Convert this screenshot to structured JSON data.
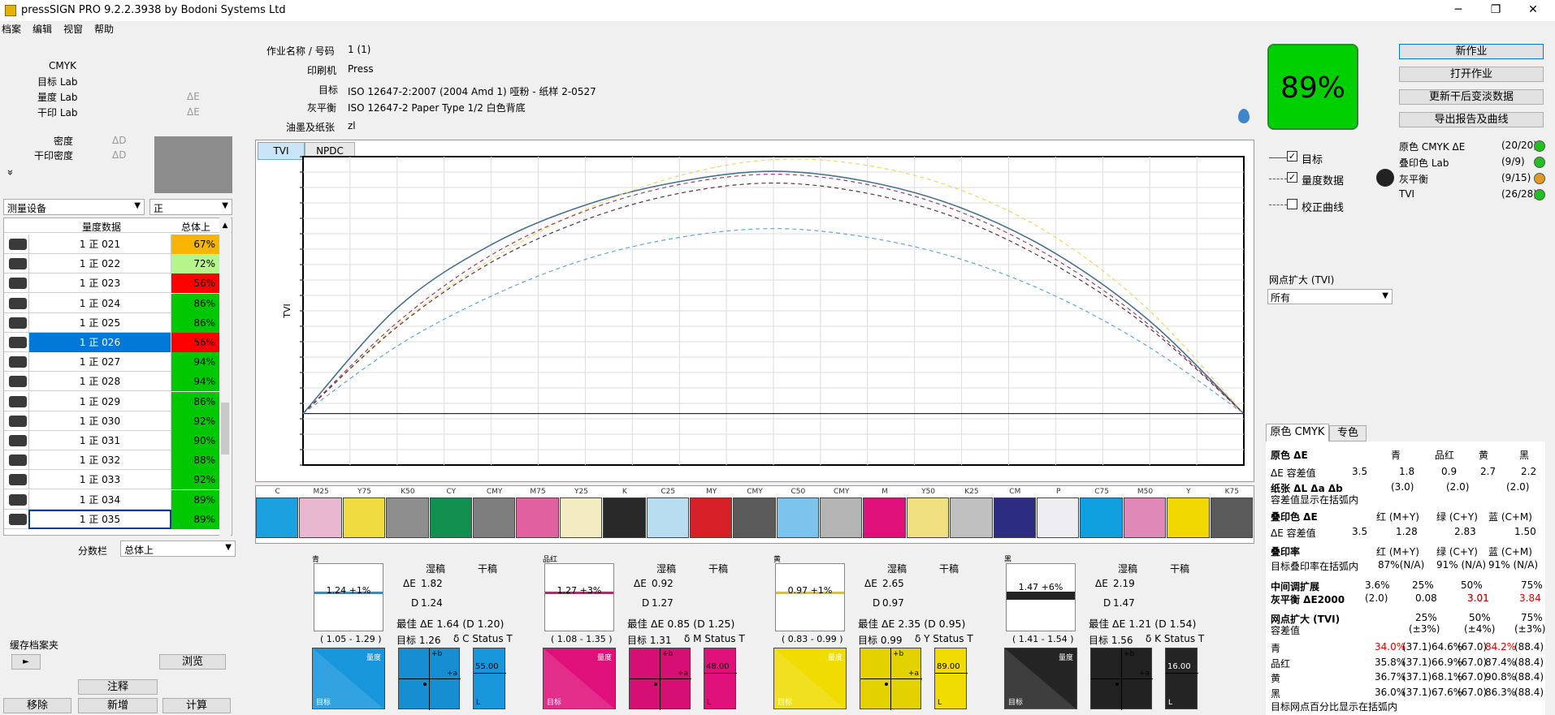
{
  "window": {
    "title": "pressSIGN PRO 9.2.2.3938 by Bodoni Systems Ltd",
    "minimize": "─",
    "maximize": "❐",
    "close": "✕"
  },
  "menu": [
    "档案",
    "编辑",
    "视窗",
    "帮助"
  ],
  "left_info": {
    "cmyk": "CMYK",
    "target_lab": "目标 Lab",
    "measure_lab": "量度 Lab",
    "dry_lab": "干印 Lab",
    "delta_e": "ΔE",
    "density": "密度",
    "delta_d": "ΔD",
    "dry_density": "干印密度",
    "expand": "»"
  },
  "device_select": {
    "value": "测量设备",
    "side": "正"
  },
  "table": {
    "col_measure": "量度数据",
    "col_total": "总体上",
    "rows": [
      {
        "name": "1 正 021",
        "pct": "67%",
        "color": "#f7b500"
      },
      {
        "name": "1 正 022",
        "pct": "72%",
        "color": "#b6f58a"
      },
      {
        "name": "1 正 023",
        "pct": "56%",
        "color": "#ff0000"
      },
      {
        "name": "1 正 024",
        "pct": "86%",
        "color": "#00c800"
      },
      {
        "name": "1 正 025",
        "pct": "86%",
        "color": "#00c800"
      },
      {
        "name": "1 正 026",
        "pct": "56%",
        "color": "#ff0000"
      },
      {
        "name": "1 正 027",
        "pct": "94%",
        "color": "#00c800"
      },
      {
        "name": "1 正 028",
        "pct": "94%",
        "color": "#00c800"
      },
      {
        "name": "1 正 029",
        "pct": "86%",
        "color": "#00c800"
      },
      {
        "name": "1 正 030",
        "pct": "92%",
        "color": "#00c800"
      },
      {
        "name": "1 正 031",
        "pct": "90%",
        "color": "#00c800"
      },
      {
        "name": "1 正 032",
        "pct": "88%",
        "color": "#00c800"
      },
      {
        "name": "1 正 033",
        "pct": "92%",
        "color": "#00c800"
      },
      {
        "name": "1 正 034",
        "pct": "89%",
        "color": "#00c800"
      },
      {
        "name": "1 正 035",
        "pct": "89%",
        "color": "#00c800"
      }
    ]
  },
  "score_bar": {
    "label": "分数栏",
    "value": "总体上"
  },
  "cache": {
    "label": "缓存档案夹",
    "arrow": "►",
    "browse": "浏览"
  },
  "bottom_buttons": {
    "annotate": "注释",
    "remove": "移除",
    "add": "新增",
    "calc": "计算"
  },
  "job": {
    "name_label": "作业名称 / 号码",
    "name_value": "1 (1)",
    "press_label": "印刷机",
    "press_value": "Press",
    "target_label": "目标",
    "target_value": "ISO 12647-2:2007 (2004 Amd 1) 哑粉 - 纸样 2-0527",
    "gray_label": "灰平衡",
    "gray_value": "ISO 12647-2 Paper Type 1/2 白色背底",
    "ink_label": "油墨及纸张",
    "ink_value": "zl"
  },
  "score": "89%",
  "right_buttons": {
    "new_job": "新作业",
    "open_job": "打开作业",
    "update": "更新干后变淡数据",
    "export": "导出报告及曲线"
  },
  "legend": {
    "target": "目标",
    "measure": "量度数据",
    "curve": "校正曲线"
  },
  "status": [
    {
      "label": "原色 CMYK ΔE",
      "value": "(20/20)",
      "color": "#22c022"
    },
    {
      "label": "叠印色 Lab",
      "value": "(9/9)",
      "color": "#22c022"
    },
    {
      "label": "灰平衡",
      "value": "(9/15)",
      "color": "#e09a20"
    },
    {
      "label": "TVI",
      "value": "(26/28)",
      "color": "#22c022"
    }
  ],
  "tvi_select": {
    "label": "网点扩大 (TVI)",
    "value": "所有"
  },
  "chart_tabs": {
    "tvi": "TVI",
    "npdc": "NPDC"
  },
  "chart_data": {
    "type": "line",
    "ylabel": "TVI",
    "x": [
      0,
      10,
      20,
      30,
      40,
      50,
      60,
      70,
      80,
      90,
      100
    ],
    "series": [
      {
        "color": "#4a7090",
        "dash": "",
        "values": [
          0,
          7.2,
          11.5,
          14.2,
          15.8,
          16.5,
          15.8,
          14.0,
          10.9,
          6.3,
          0
        ]
      },
      {
        "color": "#e8d870",
        "dash": "5,4",
        "values": [
          0,
          6.0,
          10.5,
          13.9,
          16.2,
          17.3,
          16.9,
          15.2,
          12.0,
          7.0,
          0
        ]
      },
      {
        "color": "#a04060",
        "dash": "5,4",
        "values": [
          0,
          6.2,
          10.8,
          13.8,
          15.6,
          16.3,
          15.6,
          13.7,
          10.5,
          6.0,
          0
        ]
      },
      {
        "color": "#603040",
        "dash": "5,4",
        "values": [
          0,
          5.9,
          10.3,
          13.2,
          15.0,
          15.7,
          15.0,
          13.2,
          10.1,
          5.8,
          0
        ]
      },
      {
        "color": "#60a8d0",
        "dash": "5,4",
        "values": [
          0,
          4.6,
          8.0,
          10.5,
          12.0,
          12.6,
          12.0,
          10.5,
          8.0,
          4.5,
          0
        ]
      }
    ],
    "grid": true
  },
  "strip": [
    {
      "label": "C",
      "color": "#1ba0e0"
    },
    {
      "label": "M25",
      "color": "#e8b8d0"
    },
    {
      "label": "Y75",
      "color": "#f0dc40"
    },
    {
      "label": "K50",
      "color": "#8e8e8e"
    },
    {
      "label": "CY",
      "color": "#129050"
    },
    {
      "label": "CMY",
      "color": "#7e7e7e"
    },
    {
      "label": "M75",
      "color": "#e060a0"
    },
    {
      "label": "Y25",
      "color": "#f2ecc0"
    },
    {
      "label": "K",
      "color": "#282828"
    },
    {
      "label": "C25",
      "color": "#b8dcf0"
    },
    {
      "label": "MY",
      "color": "#d82028"
    },
    {
      "label": "CMY",
      "color": "#5a5a5a"
    },
    {
      "label": "C50",
      "color": "#7cc4ec"
    },
    {
      "label": "CMY",
      "color": "#b4b4b4"
    },
    {
      "label": "M",
      "color": "#e0107a"
    },
    {
      "label": "Y50",
      "color": "#f0e080"
    },
    {
      "label": "K25",
      "color": "#c0c0c0"
    },
    {
      "label": "CM",
      "color": "#2c2c80"
    },
    {
      "label": "P",
      "color": "#eeeef2"
    },
    {
      "label": "C75",
      "color": "#10a0e0"
    },
    {
      "label": "M50",
      "color": "#e088b8"
    },
    {
      "label": "Y",
      "color": "#f0d800"
    },
    {
      "label": "K75",
      "color": "#5a5a5a"
    }
  ],
  "inks": [
    {
      "name": "青",
      "val": "1.24 +1%",
      "range": "( 1.05 - 1.29 )",
      "de": "1.82",
      "d": "1.24",
      "best": "最佳 ΔE 1.64 (D 1.20)",
      "target": "目标 1.26",
      "status": "δ  C Status T",
      "bar": "55.00",
      "color": "#1796dc",
      "line": "#1796dc"
    },
    {
      "name": "品红",
      "val": "1.27 +3%",
      "range": "( 1.08 - 1.35 )",
      "de": "0.92",
      "d": "1.27",
      "best": "最佳 ΔE 0.85 (D 1.25)",
      "target": "目标 1.31",
      "status": "δ  M Status T",
      "bar": "48.00",
      "color": "#e0107a",
      "line": "#e0107a"
    },
    {
      "name": "黄",
      "val": "0.97 +1%",
      "range": "( 0.83 - 0.99 )",
      "de": "2.65",
      "d": "0.97",
      "best": "最佳 ΔE 2.35 (D 0.95)",
      "target": "目标 0.99",
      "status": "δ  Y Status T",
      "bar": "89.00",
      "color": "#f0dc00",
      "line": "#e0c800"
    },
    {
      "name": "黑",
      "val": "1.47 +6%",
      "range": "( 1.41 - 1.54 )",
      "de": "2.19",
      "d": "1.47",
      "best": "最佳 ΔE 1.21 (D 1.54)",
      "target": "目标 1.56",
      "status": "δ  K Status T",
      "bar": "16.00",
      "color": "#242424",
      "line": "#242424"
    }
  ],
  "ink_labels": {
    "wet": "湿稿",
    "dry": "干稿",
    "de": "ΔE",
    "d": "D",
    "measure": "量度",
    "target": "目标"
  },
  "rp": {
    "tab1": "原色 CMYK",
    "tab2": "专色",
    "primary": "原色 ΔE",
    "c": "青",
    "m": "品红",
    "y": "黄",
    "k": "黑",
    "tol": "ΔE 容差值",
    "tol_vals": [
      "3.5",
      "1.8",
      "0.9",
      "2.7",
      "2.2"
    ],
    "paper": "纸张 ΔL Δa Δb",
    "paper_vals": [
      "(3.0)",
      "(2.0)",
      "(2.0)"
    ],
    "paper_note": "容差值显示在括弧内",
    "overprint": "叠印色 ΔE",
    "r": "红 (M+Y)",
    "g": "绿 (C+Y)",
    "b": "蓝 (C+M)",
    "op_tol": "ΔE 容差值",
    "op_vals": [
      "3.5",
      "1.28",
      "2.83",
      "1.50"
    ],
    "trap": "叠印率",
    "trap_note": "目标叠印率在括弧内",
    "trap_vals": [
      "87%(N/A)",
      "91% (N/A)",
      "91% (N/A)"
    ],
    "mid": "中间调扩展",
    "mid_vals": [
      "3.6%",
      "25%",
      "50%",
      "75%"
    ],
    "gray": "灰平衡 ΔE2000",
    "gray_vals": [
      "(2.0)",
      "0.08",
      "3.01",
      "3.84"
    ],
    "tvi": "网点扩大 (TVI)",
    "tvi_cols": [
      "25%",
      "50%",
      "75%"
    ],
    "tvi_tol": "容差值",
    "tvi_tols": [
      "(±3%)",
      "(±4%)",
      "(±3%)"
    ],
    "tvi_rows": [
      {
        "n": "青",
        "a": "34.0%",
        "a2": "(37.1)",
        "b": "64.6%",
        "b2": "(67.0)",
        "c": "84.2%",
        "c2": "(88.4)",
        "ar": true,
        "cr": true
      },
      {
        "n": "品红",
        "a": "35.8%",
        "a2": "(37.1)",
        "b": "66.9%",
        "b2": "(67.0)",
        "c": "87.4%",
        "c2": "(88.4)"
      },
      {
        "n": "黄",
        "a": "36.7%",
        "a2": "(37.1)",
        "b": "68.1%",
        "b2": "(67.0)",
        "c": "90.8%",
        "c2": "(88.4)"
      },
      {
        "n": "黑",
        "a": "36.0%",
        "a2": "(37.1)",
        "b": "67.6%",
        "b2": "(67.0)",
        "c": "86.3%",
        "c2": "(88.4)"
      }
    ],
    "footer": "目标网点百分比显示在括弧内"
  }
}
